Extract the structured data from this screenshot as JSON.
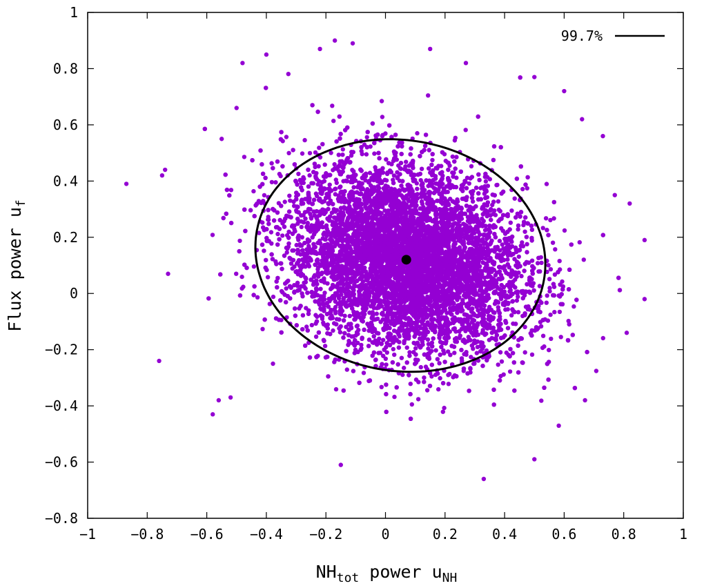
{
  "chart_data": {
    "type": "scatter",
    "xlabel": {
      "base": "NH",
      "sub": "tot",
      "rest": " power u",
      "sub2": "NH"
    },
    "ylabel": {
      "base": "Flux power u",
      "sub": "f"
    },
    "xlim": [
      -1,
      1
    ],
    "ylim": [
      -0.8,
      1
    ],
    "x_ticks": [
      -1,
      -0.8,
      -0.6,
      -0.4,
      -0.2,
      0,
      0.2,
      0.4,
      0.6,
      0.8,
      1
    ],
    "x_tick_labels": [
      "−1",
      "−0.8",
      "−0.6",
      "−0.4",
      "−0.2",
      "0",
      "0.2",
      "0.4",
      "0.6",
      "0.8",
      "1"
    ],
    "y_ticks": [
      -0.8,
      -0.6,
      -0.4,
      -0.2,
      0,
      0.2,
      0.4,
      0.6,
      0.8,
      1
    ],
    "y_tick_labels": [
      "−0.8",
      "−0.6",
      "−0.4",
      "−0.2",
      "0",
      "0.2",
      "0.4",
      "0.6",
      "0.8",
      "1"
    ],
    "grid": false,
    "legend": {
      "position": "top-right",
      "label": "99.7%",
      "color": "#000000"
    },
    "point_color": "#9400d3",
    "scatter_distribution": {
      "center": [
        0.07,
        0.12
      ],
      "sigma_x": 0.2,
      "sigma_y": 0.17,
      "correlation": -0.2,
      "x_range_observed": [
        -0.87,
        0.87
      ],
      "y_range_observed": [
        -0.66,
        0.9
      ]
    },
    "outlier_points": [
      {
        "x": -0.87,
        "y": 0.39
      },
      {
        "x": -0.75,
        "y": 0.42
      },
      {
        "x": -0.74,
        "y": 0.44
      },
      {
        "x": -0.76,
        "y": -0.24
      },
      {
        "x": -0.73,
        "y": 0.07
      },
      {
        "x": -0.58,
        "y": -0.43
      },
      {
        "x": -0.56,
        "y": -0.38
      },
      {
        "x": -0.52,
        "y": -0.37
      },
      {
        "x": -0.48,
        "y": 0.82
      },
      {
        "x": -0.4,
        "y": 0.85
      },
      {
        "x": -0.22,
        "y": 0.87
      },
      {
        "x": -0.17,
        "y": 0.9
      },
      {
        "x": -0.11,
        "y": 0.89
      },
      {
        "x": 0.15,
        "y": 0.87
      },
      {
        "x": 0.27,
        "y": 0.82
      },
      {
        "x": 0.33,
        "y": -0.66
      },
      {
        "x": -0.15,
        "y": -0.61
      },
      {
        "x": 0.5,
        "y": -0.59
      },
      {
        "x": 0.6,
        "y": 0.72
      },
      {
        "x": 0.73,
        "y": 0.56
      },
      {
        "x": 0.77,
        "y": 0.35
      },
      {
        "x": 0.82,
        "y": 0.32
      },
      {
        "x": 0.87,
        "y": 0.19
      },
      {
        "x": 0.87,
        "y": -0.02
      },
      {
        "x": 0.81,
        "y": -0.14
      },
      {
        "x": 0.67,
        "y": -0.38
      },
      {
        "x": -0.5,
        "y": 0.66
      },
      {
        "x": -0.55,
        "y": 0.55
      },
      {
        "x": 0.66,
        "y": 0.62
      },
      {
        "x": 0.5,
        "y": 0.77
      }
    ],
    "mean_point": {
      "x": 0.07,
      "y": 0.12,
      "color": "#000000"
    },
    "ellipse": {
      "label": "99.7%",
      "center": [
        0.05,
        0.135
      ],
      "semi_major": 0.49,
      "semi_minor": 0.41,
      "angle_deg": -12,
      "color": "#000000"
    }
  }
}
